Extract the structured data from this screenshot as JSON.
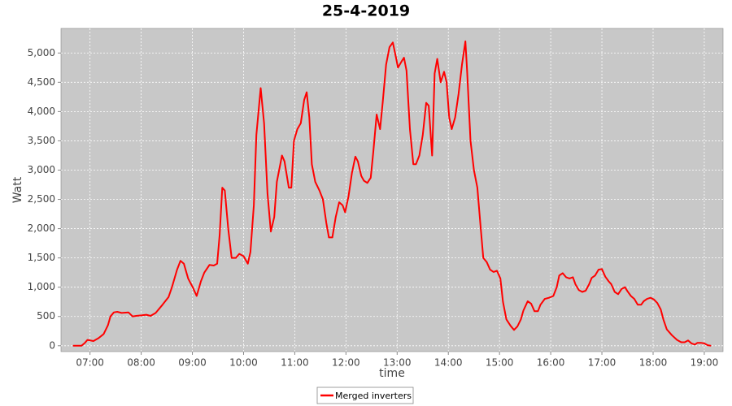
{
  "chart_data": {
    "type": "line",
    "title": "25-4-2019",
    "x_label": "time",
    "y_label": "Watt",
    "x": [
      "06:40",
      "06:50",
      "06:54",
      "06:57",
      "07:04",
      "07:10",
      "07:16",
      "07:21",
      "07:24",
      "07:28",
      "07:32",
      "07:37",
      "07:45",
      "07:50",
      "07:54",
      "08:01",
      "08:06",
      "08:11",
      "08:17",
      "08:25",
      "08:32",
      "08:36",
      "08:42",
      "08:46",
      "08:50",
      "08:55",
      "09:01",
      "09:05",
      "09:10",
      "09:14",
      "09:20",
      "09:25",
      "09:29",
      "09:32",
      "09:35",
      "09:38",
      "09:42",
      "09:46",
      "09:51",
      "09:55",
      "10:00",
      "10:05",
      "10:08",
      "10:12",
      "10:15",
      "10:20",
      "10:24",
      "10:28",
      "10:32",
      "10:36",
      "10:39",
      "10:45",
      "10:48",
      "10:53",
      "10:56",
      "10:59",
      "11:03",
      "11:07",
      "11:11",
      "11:14",
      "11:17",
      "11:20",
      "11:24",
      "11:29",
      "11:33",
      "11:37",
      "11:40",
      "11:44",
      "11:48",
      "11:52",
      "11:56",
      "11:59",
      "12:03",
      "12:07",
      "12:11",
      "12:14",
      "12:18",
      "12:21",
      "12:25",
      "12:29",
      "12:32",
      "12:36",
      "12:40",
      "12:43",
      "12:47",
      "12:51",
      "12:55",
      "12:59",
      "13:01",
      "13:05",
      "13:08",
      "13:11",
      "13:15",
      "13:19",
      "13:22",
      "13:26",
      "13:30",
      "13:34",
      "13:37",
      "13:41",
      "13:44",
      "13:47",
      "13:51",
      "13:55",
      "13:58",
      "14:01",
      "14:04",
      "14:08",
      "14:12",
      "14:16",
      "14:20",
      "14:22",
      "14:26",
      "14:30",
      "14:34",
      "14:38",
      "14:41",
      "14:45",
      "14:49",
      "14:53",
      "14:57",
      "15:01",
      "15:04",
      "15:08",
      "15:13",
      "15:17",
      "15:21",
      "15:25",
      "15:28",
      "15:33",
      "15:37",
      "15:41",
      "15:45",
      "15:48",
      "15:53",
      "15:58",
      "16:03",
      "16:07",
      "16:10",
      "16:14",
      "16:18",
      "16:22",
      "16:26",
      "16:29",
      "16:33",
      "16:37",
      "16:41",
      "16:45",
      "16:48",
      "16:52",
      "16:56",
      "17:00",
      "17:04",
      "17:08",
      "17:11",
      "17:15",
      "17:19",
      "17:23",
      "17:27",
      "17:30",
      "17:34",
      "17:38",
      "17:42",
      "17:46",
      "17:49",
      "17:53",
      "17:57",
      "18:01",
      "18:05",
      "18:09",
      "18:12",
      "18:16",
      "18:22",
      "18:28",
      "18:33",
      "18:37",
      "18:41",
      "18:45",
      "18:49",
      "18:52",
      "18:56",
      "19:00",
      "19:04",
      "19:08"
    ],
    "series": [
      {
        "name": "Merged inverters",
        "color": "#ff0000",
        "values": [
          0,
          0,
          50,
          100,
          80,
          130,
          200,
          350,
          500,
          570,
          580,
          560,
          570,
          500,
          510,
          520,
          530,
          510,
          560,
          700,
          830,
          1000,
          1300,
          1450,
          1400,
          1150,
          980,
          850,
          1100,
          1250,
          1380,
          1370,
          1400,
          1900,
          2700,
          2650,
          2000,
          1500,
          1500,
          1570,
          1530,
          1400,
          1600,
          2400,
          3600,
          4400,
          3800,
          2600,
          1950,
          2200,
          2800,
          3250,
          3150,
          2700,
          2700,
          3500,
          3700,
          3800,
          4200,
          4330,
          3900,
          3100,
          2800,
          2650,
          2500,
          2100,
          1850,
          1850,
          2200,
          2450,
          2400,
          2280,
          2550,
          2950,
          3230,
          3150,
          2900,
          2820,
          2780,
          2870,
          3300,
          3950,
          3700,
          4150,
          4800,
          5100,
          5180,
          4900,
          4750,
          4850,
          4920,
          4700,
          3700,
          3100,
          3100,
          3250,
          3600,
          4150,
          4100,
          3250,
          4650,
          4900,
          4500,
          4680,
          4500,
          3900,
          3700,
          3900,
          4300,
          4800,
          5200,
          4700,
          3500,
          3000,
          2700,
          2000,
          1500,
          1430,
          1300,
          1260,
          1280,
          1150,
          750,
          450,
          340,
          270,
          330,
          450,
          600,
          760,
          720,
          590,
          590,
          700,
          800,
          820,
          850,
          1000,
          1200,
          1240,
          1170,
          1150,
          1170,
          1050,
          950,
          920,
          940,
          1050,
          1160,
          1200,
          1300,
          1310,
          1180,
          1100,
          1050,
          920,
          880,
          970,
          1000,
          930,
          850,
          800,
          700,
          700,
          760,
          800,
          820,
          790,
          730,
          620,
          450,
          280,
          180,
          100,
          60,
          60,
          90,
          40,
          20,
          50,
          50,
          40,
          10,
          0
        ]
      }
    ],
    "xlim": [
      "06:26",
      "19:22"
    ],
    "xticks": [
      "07:00",
      "08:00",
      "09:00",
      "10:00",
      "11:00",
      "12:00",
      "13:00",
      "14:00",
      "15:00",
      "16:00",
      "17:00",
      "18:00",
      "19:00"
    ],
    "ylim": [
      -100,
      5420
    ],
    "yticks": [
      0,
      500,
      {
        "value": 1000,
        "label": "1,000"
      },
      {
        "value": 1500,
        "label": "1,500"
      },
      {
        "value": 2000,
        "label": "2,000"
      },
      {
        "value": 2500,
        "label": "2,500"
      },
      {
        "value": 3000,
        "label": "3,000"
      },
      {
        "value": 3500,
        "label": "3,500"
      },
      {
        "value": 4000,
        "label": "4,000"
      },
      {
        "value": 4500,
        "label": "4,500"
      },
      {
        "value": 5000,
        "label": "5,000"
      }
    ],
    "grid": true,
    "legend": "bottom"
  }
}
